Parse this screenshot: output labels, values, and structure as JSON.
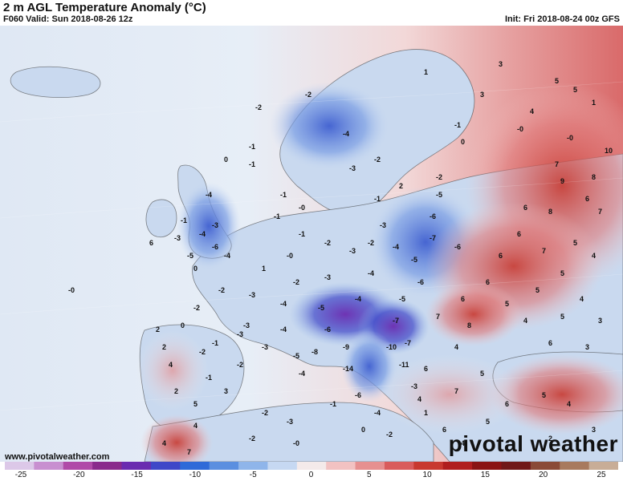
{
  "header": {
    "title": "2 m AGL Temperature Anomaly (°C)",
    "valid": "F060 Valid: Sun 2018-08-26 12z",
    "init": "Init: Fri 2018-08-24 00z GFS"
  },
  "footer": {
    "website": "www.pivotalweather.com",
    "brand": "pivotal weather"
  },
  "colorbar": {
    "ticks": [
      "-25",
      "-20",
      "-15",
      "-10",
      "-5",
      "0",
      "5",
      "10",
      "15",
      "20",
      "25"
    ],
    "colors": [
      "#dcc8e8",
      "#c88fd0",
      "#b04aa8",
      "#8a2a8c",
      "#6a2bb0",
      "#3f47c8",
      "#2f6ad8",
      "#5b8fe0",
      "#8fb5ea",
      "#c6d8f2",
      "#f4eaea",
      "#f2c2c2",
      "#e69090",
      "#d95c5c",
      "#c8382f",
      "#b01e1e",
      "#8a1414",
      "#701818",
      "#8a4a36",
      "#a87a5e",
      "#c8ad97"
    ]
  },
  "map_values": [
    {
      "v": "-2",
      "a": 0.41,
      "b": 0.18
    },
    {
      "v": "-2",
      "a": 0.49,
      "b": 0.15
    },
    {
      "v": "-1",
      "a": 0.4,
      "b": 0.27
    },
    {
      "v": "-1",
      "a": 0.4,
      "b": 0.31
    },
    {
      "v": "-1",
      "a": 0.45,
      "b": 0.38
    },
    {
      "v": "-0",
      "a": 0.11,
      "b": 0.6
    },
    {
      "v": "0",
      "a": 0.36,
      "b": 0.3
    },
    {
      "v": "-4",
      "a": 0.55,
      "b": 0.24
    },
    {
      "v": "-3",
      "a": 0.56,
      "b": 0.32
    },
    {
      "v": "-2",
      "a": 0.6,
      "b": 0.3
    },
    {
      "v": "1",
      "a": 0.68,
      "b": 0.1
    },
    {
      "v": "-1",
      "a": 0.73,
      "b": 0.22
    },
    {
      "v": "0",
      "a": 0.74,
      "b": 0.26
    },
    {
      "v": "-0",
      "a": 0.83,
      "b": 0.23
    },
    {
      "v": "-0",
      "a": 0.91,
      "b": 0.25
    },
    {
      "v": "3",
      "a": 0.8,
      "b": 0.08
    },
    {
      "v": "5",
      "a": 0.89,
      "b": 0.12
    },
    {
      "v": "5",
      "a": 0.92,
      "b": 0.14
    },
    {
      "v": "3",
      "a": 0.77,
      "b": 0.15
    },
    {
      "v": "4",
      "a": 0.85,
      "b": 0.19
    },
    {
      "v": "1",
      "a": 0.95,
      "b": 0.17
    },
    {
      "v": "10",
      "a": 0.97,
      "b": 0.28
    },
    {
      "v": "7",
      "a": 0.89,
      "b": 0.31
    },
    {
      "v": "9",
      "a": 0.9,
      "b": 0.35
    },
    {
      "v": "8",
      "a": 0.95,
      "b": 0.34
    },
    {
      "v": "6",
      "a": 0.94,
      "b": 0.39
    },
    {
      "v": "7",
      "a": 0.96,
      "b": 0.42
    },
    {
      "v": "8",
      "a": 0.88,
      "b": 0.42
    },
    {
      "v": "6",
      "a": 0.84,
      "b": 0.41
    },
    {
      "v": "6",
      "a": 0.83,
      "b": 0.47
    },
    {
      "v": "7",
      "a": 0.87,
      "b": 0.51
    },
    {
      "v": "5",
      "a": 0.92,
      "b": 0.49
    },
    {
      "v": "4",
      "a": 0.95,
      "b": 0.52
    },
    {
      "v": "5",
      "a": 0.9,
      "b": 0.56
    },
    {
      "v": "6",
      "a": 0.8,
      "b": 0.52
    },
    {
      "v": "6",
      "a": 0.78,
      "b": 0.58
    },
    {
      "v": "5",
      "a": 0.86,
      "b": 0.6
    },
    {
      "v": "4",
      "a": 0.93,
      "b": 0.62
    },
    {
      "v": "3",
      "a": 0.96,
      "b": 0.67
    },
    {
      "v": "5",
      "a": 0.9,
      "b": 0.66
    },
    {
      "v": "4",
      "a": 0.84,
      "b": 0.67
    },
    {
      "v": "6",
      "a": 0.74,
      "b": 0.62
    },
    {
      "v": "8",
      "a": 0.75,
      "b": 0.68
    },
    {
      "v": "7",
      "a": 0.7,
      "b": 0.66
    },
    {
      "v": "5",
      "a": 0.81,
      "b": 0.63
    },
    {
      "v": "6",
      "a": 0.88,
      "b": 0.72
    },
    {
      "v": "3",
      "a": 0.94,
      "b": 0.73
    },
    {
      "v": "4",
      "a": 0.73,
      "b": 0.73
    },
    {
      "v": "5",
      "a": 0.77,
      "b": 0.79
    },
    {
      "v": "7",
      "a": 0.73,
      "b": 0.83
    },
    {
      "v": "6",
      "a": 0.81,
      "b": 0.86
    },
    {
      "v": "5",
      "a": 0.87,
      "b": 0.84
    },
    {
      "v": "4",
      "a": 0.91,
      "b": 0.86
    },
    {
      "v": "3",
      "a": 0.95,
      "b": 0.92
    },
    {
      "v": "6",
      "a": 0.68,
      "b": 0.78
    },
    {
      "v": "4",
      "a": 0.67,
      "b": 0.85
    },
    {
      "v": "5",
      "a": 0.78,
      "b": 0.9
    },
    {
      "v": "2",
      "a": 0.88,
      "b": 0.94
    },
    {
      "v": "-5",
      "a": 0.7,
      "b": 0.38
    },
    {
      "v": "-6",
      "a": 0.69,
      "b": 0.43
    },
    {
      "v": "-7",
      "a": 0.69,
      "b": 0.48
    },
    {
      "v": "-6",
      "a": 0.73,
      "b": 0.5
    },
    {
      "v": "-5",
      "a": 0.66,
      "b": 0.53
    },
    {
      "v": "-6",
      "a": 0.67,
      "b": 0.58
    },
    {
      "v": "-4",
      "a": 0.63,
      "b": 0.5
    },
    {
      "v": "-3",
      "a": 0.61,
      "b": 0.45
    },
    {
      "v": "-2",
      "a": 0.59,
      "b": 0.49
    },
    {
      "v": "-3",
      "a": 0.56,
      "b": 0.51
    },
    {
      "v": "-2",
      "a": 0.52,
      "b": 0.49
    },
    {
      "v": "-1",
      "a": 0.48,
      "b": 0.47
    },
    {
      "v": "-0",
      "a": 0.46,
      "b": 0.52
    },
    {
      "v": "1",
      "a": 0.42,
      "b": 0.55
    },
    {
      "v": "-2",
      "a": 0.47,
      "b": 0.58
    },
    {
      "v": "-3",
      "a": 0.52,
      "b": 0.57
    },
    {
      "v": "-4",
      "a": 0.59,
      "b": 0.56
    },
    {
      "v": "-5",
      "a": 0.64,
      "b": 0.62
    },
    {
      "v": "-7",
      "a": 0.63,
      "b": 0.67
    },
    {
      "v": "-4",
      "a": 0.57,
      "b": 0.62
    },
    {
      "v": "-5",
      "a": 0.51,
      "b": 0.64
    },
    {
      "v": "-4",
      "a": 0.45,
      "b": 0.63
    },
    {
      "v": "-3",
      "a": 0.4,
      "b": 0.61
    },
    {
      "v": "-2",
      "a": 0.35,
      "b": 0.6
    },
    {
      "v": "-2",
      "a": 0.31,
      "b": 0.64
    },
    {
      "v": "-3",
      "a": 0.39,
      "b": 0.68
    },
    {
      "v": "-4",
      "a": 0.45,
      "b": 0.69
    },
    {
      "v": "-6",
      "a": 0.52,
      "b": 0.69
    },
    {
      "v": "-9",
      "a": 0.55,
      "b": 0.73
    },
    {
      "v": "-10",
      "a": 0.62,
      "b": 0.73
    },
    {
      "v": "-11",
      "a": 0.64,
      "b": 0.77
    },
    {
      "v": "-7",
      "a": 0.65,
      "b": 0.72
    },
    {
      "v": "-14",
      "a": 0.55,
      "b": 0.78
    },
    {
      "v": "-8",
      "a": 0.5,
      "b": 0.74
    },
    {
      "v": "-5",
      "a": 0.47,
      "b": 0.75
    },
    {
      "v": "-3",
      "a": 0.42,
      "b": 0.73
    },
    {
      "v": "-2",
      "a": 0.38,
      "b": 0.77
    },
    {
      "v": "-4",
      "a": 0.48,
      "b": 0.79
    },
    {
      "v": "-1",
      "a": 0.34,
      "b": 0.72
    },
    {
      "v": "0",
      "a": 0.29,
      "b": 0.68
    },
    {
      "v": "-6",
      "a": 0.57,
      "b": 0.84
    },
    {
      "v": "-4",
      "a": 0.6,
      "b": 0.88
    },
    {
      "v": "-2",
      "a": 0.62,
      "b": 0.93
    },
    {
      "v": "-1",
      "a": 0.53,
      "b": 0.86
    },
    {
      "v": "-3",
      "a": 0.66,
      "b": 0.82
    },
    {
      "v": "1",
      "a": 0.68,
      "b": 0.88
    },
    {
      "v": "0",
      "a": 0.58,
      "b": 0.92
    },
    {
      "v": "-4",
      "a": 0.33,
      "b": 0.38
    },
    {
      "v": "-3",
      "a": 0.34,
      "b": 0.45
    },
    {
      "v": "-4",
      "a": 0.32,
      "b": 0.47
    },
    {
      "v": "-6",
      "a": 0.34,
      "b": 0.5
    },
    {
      "v": "-5",
      "a": 0.3,
      "b": 0.52
    },
    {
      "v": "-4",
      "a": 0.36,
      "b": 0.52
    },
    {
      "v": "-3",
      "a": 0.28,
      "b": 0.48
    },
    {
      "v": "0",
      "a": 0.31,
      "b": 0.55
    },
    {
      "v": "6",
      "a": 0.24,
      "b": 0.49
    },
    {
      "v": "-1",
      "a": 0.29,
      "b": 0.44
    },
    {
      "v": "-1",
      "a": 0.44,
      "b": 0.43
    },
    {
      "v": "-0",
      "a": 0.48,
      "b": 0.41
    },
    {
      "v": "-1",
      "a": 0.6,
      "b": 0.39
    },
    {
      "v": "-2",
      "a": 0.7,
      "b": 0.34
    },
    {
      "v": "2",
      "a": 0.64,
      "b": 0.36
    },
    {
      "v": "2",
      "a": 0.25,
      "b": 0.69
    },
    {
      "v": "4",
      "a": 0.27,
      "b": 0.77
    },
    {
      "v": "2",
      "a": 0.28,
      "b": 0.83
    },
    {
      "v": "5",
      "a": 0.31,
      "b": 0.86
    },
    {
      "v": "3",
      "a": 0.36,
      "b": 0.83
    },
    {
      "v": "-1",
      "a": 0.33,
      "b": 0.8
    },
    {
      "v": "-2",
      "a": 0.32,
      "b": 0.74
    },
    {
      "v": "-3",
      "a": 0.38,
      "b": 0.7
    },
    {
      "v": "2",
      "a": 0.26,
      "b": 0.73
    },
    {
      "v": "4",
      "a": 0.31,
      "b": 0.91
    },
    {
      "v": "-2",
      "a": 0.42,
      "b": 0.88
    },
    {
      "v": "-3",
      "a": 0.46,
      "b": 0.9
    },
    {
      "v": "-2",
      "a": 0.4,
      "b": 0.94
    },
    {
      "v": "-0",
      "a": 0.47,
      "b": 0.95
    },
    {
      "v": "7",
      "a": 0.3,
      "b": 0.97
    },
    {
      "v": "4",
      "a": 0.26,
      "b": 0.95
    },
    {
      "v": "6",
      "a": 0.71,
      "b": 0.92
    },
    {
      "v": "4",
      "a": 0.74,
      "b": 0.95
    }
  ]
}
